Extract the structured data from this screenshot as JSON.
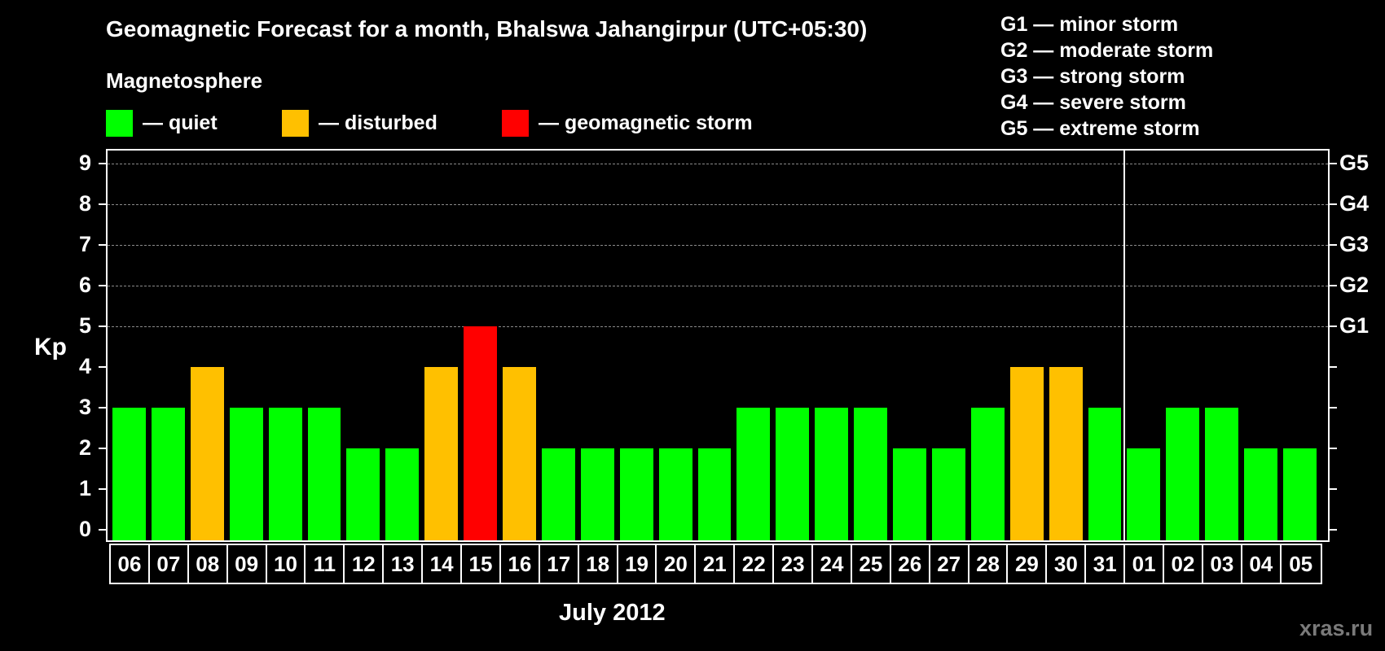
{
  "title": "Geomagnetic Forecast for a month, Bhalswa Jahangirpur (UTC+05:30)",
  "subtitle": "Magnetosphere",
  "legend": [
    {
      "label": "— quiet",
      "color": "#00ff00"
    },
    {
      "label": "— disturbed",
      "color": "#ffc000"
    },
    {
      "label": "— geomagnetic storm",
      "color": "#ff0000"
    }
  ],
  "storm_scale": [
    "G1 — minor storm",
    "G2 — moderate storm",
    "G3 — strong storm",
    "G4 — severe storm",
    "G5 — extreme storm"
  ],
  "axis": {
    "ylabel": "Kp",
    "yticks": [
      "0",
      "1",
      "2",
      "3",
      "4",
      "5",
      "6",
      "7",
      "8",
      "9"
    ],
    "right_labels": [
      {
        "kp": 5,
        "label": "G1"
      },
      {
        "kp": 6,
        "label": "G2"
      },
      {
        "kp": 7,
        "label": "G3"
      },
      {
        "kp": 8,
        "label": "G4"
      },
      {
        "kp": 9,
        "label": "G5"
      }
    ],
    "xlabel": "July 2012"
  },
  "watermark": "xras.ru",
  "colors": {
    "quiet": "#00ff00",
    "disturbed": "#ffc000",
    "storm": "#ff0000",
    "background": "#000000",
    "grid": "#8a8a8a"
  },
  "chart_data": {
    "type": "bar",
    "title": "Geomagnetic Forecast for a month, Bhalswa Jahangirpur (UTC+05:30)",
    "xlabel": "July 2012",
    "ylabel": "Kp",
    "ylim": [
      0,
      9
    ],
    "grid": "dashed at Kp 5-9",
    "legend_position": "top",
    "categories": [
      "06",
      "07",
      "08",
      "09",
      "10",
      "11",
      "12",
      "13",
      "14",
      "15",
      "16",
      "17",
      "18",
      "19",
      "20",
      "21",
      "22",
      "23",
      "24",
      "25",
      "26",
      "27",
      "28",
      "29",
      "30",
      "31",
      "01",
      "02",
      "03",
      "04",
      "05"
    ],
    "values": [
      3,
      3,
      4,
      3,
      3,
      3,
      2,
      2,
      4,
      5,
      4,
      2,
      2,
      2,
      2,
      2,
      3,
      3,
      3,
      3,
      2,
      2,
      3,
      4,
      4,
      3,
      2,
      3,
      3,
      2,
      2
    ],
    "status": [
      "quiet",
      "quiet",
      "disturbed",
      "quiet",
      "quiet",
      "quiet",
      "quiet",
      "quiet",
      "disturbed",
      "storm",
      "disturbed",
      "quiet",
      "quiet",
      "quiet",
      "quiet",
      "quiet",
      "quiet",
      "quiet",
      "quiet",
      "quiet",
      "quiet",
      "quiet",
      "quiet",
      "disturbed",
      "disturbed",
      "quiet",
      "quiet",
      "quiet",
      "quiet",
      "quiet",
      "quiet"
    ],
    "month_divider_after": "31",
    "right_axis": {
      "5": "G1",
      "6": "G2",
      "7": "G3",
      "8": "G4",
      "9": "G5"
    }
  }
}
